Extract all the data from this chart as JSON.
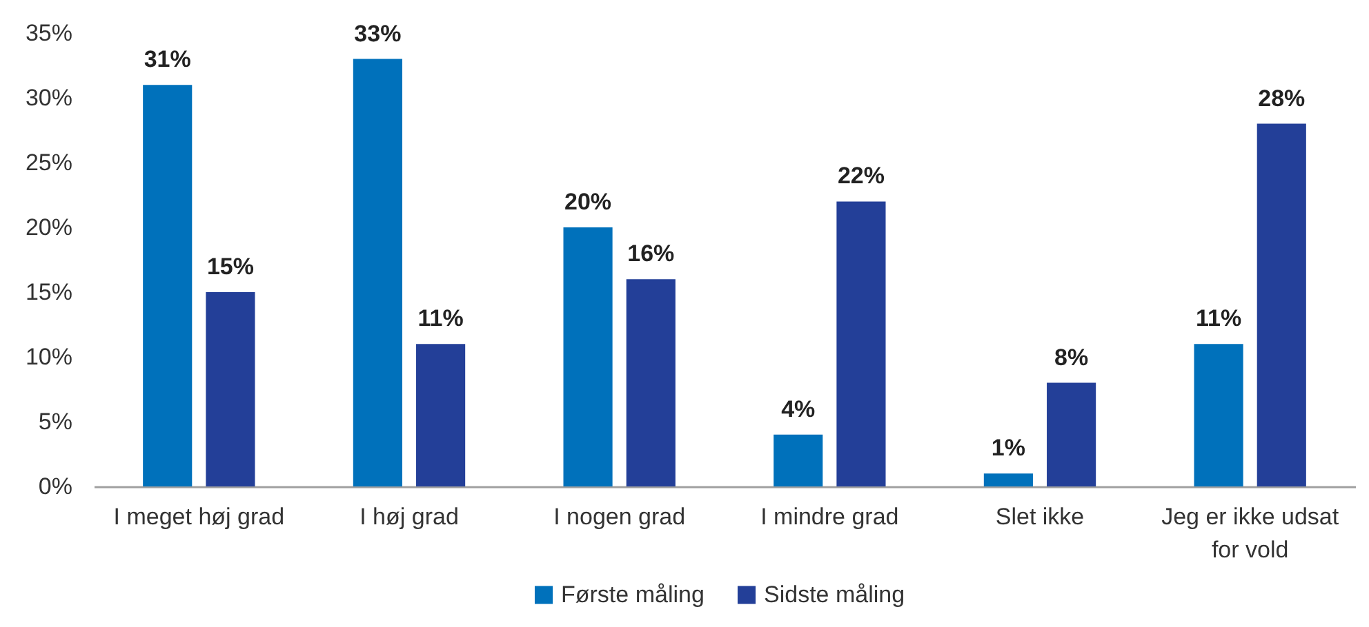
{
  "chart_data": {
    "type": "bar",
    "categories": [
      "I meget høj grad",
      "I høj grad",
      "I nogen grad",
      "I mindre grad",
      "Slet ikke",
      "Jeg er ikke udsat for vold"
    ],
    "series": [
      {
        "name": "Første måling",
        "color": "#0071bb",
        "values": [
          31,
          33,
          20,
          4,
          1,
          11
        ],
        "value_labels": [
          "31%",
          "33%",
          "20%",
          "4%",
          "1%",
          "11%"
        ]
      },
      {
        "name": "Sidste måling",
        "color": "#233f98",
        "values": [
          15,
          11,
          16,
          22,
          8,
          28
        ],
        "value_labels": [
          "15%",
          "11%",
          "16%",
          "22%",
          "8%",
          "28%"
        ]
      }
    ],
    "ylim": [
      0,
      35
    ],
    "yticks": [
      {
        "value": 0,
        "label": "0%"
      },
      {
        "value": 5,
        "label": "5%"
      },
      {
        "value": 10,
        "label": "10%"
      },
      {
        "value": 15,
        "label": "15%"
      },
      {
        "value": 20,
        "label": "20%"
      },
      {
        "value": 25,
        "label": "25%"
      },
      {
        "value": 30,
        "label": "30%"
      },
      {
        "value": 35,
        "label": "35%"
      }
    ],
    "grid": false,
    "legend": "bottom"
  }
}
